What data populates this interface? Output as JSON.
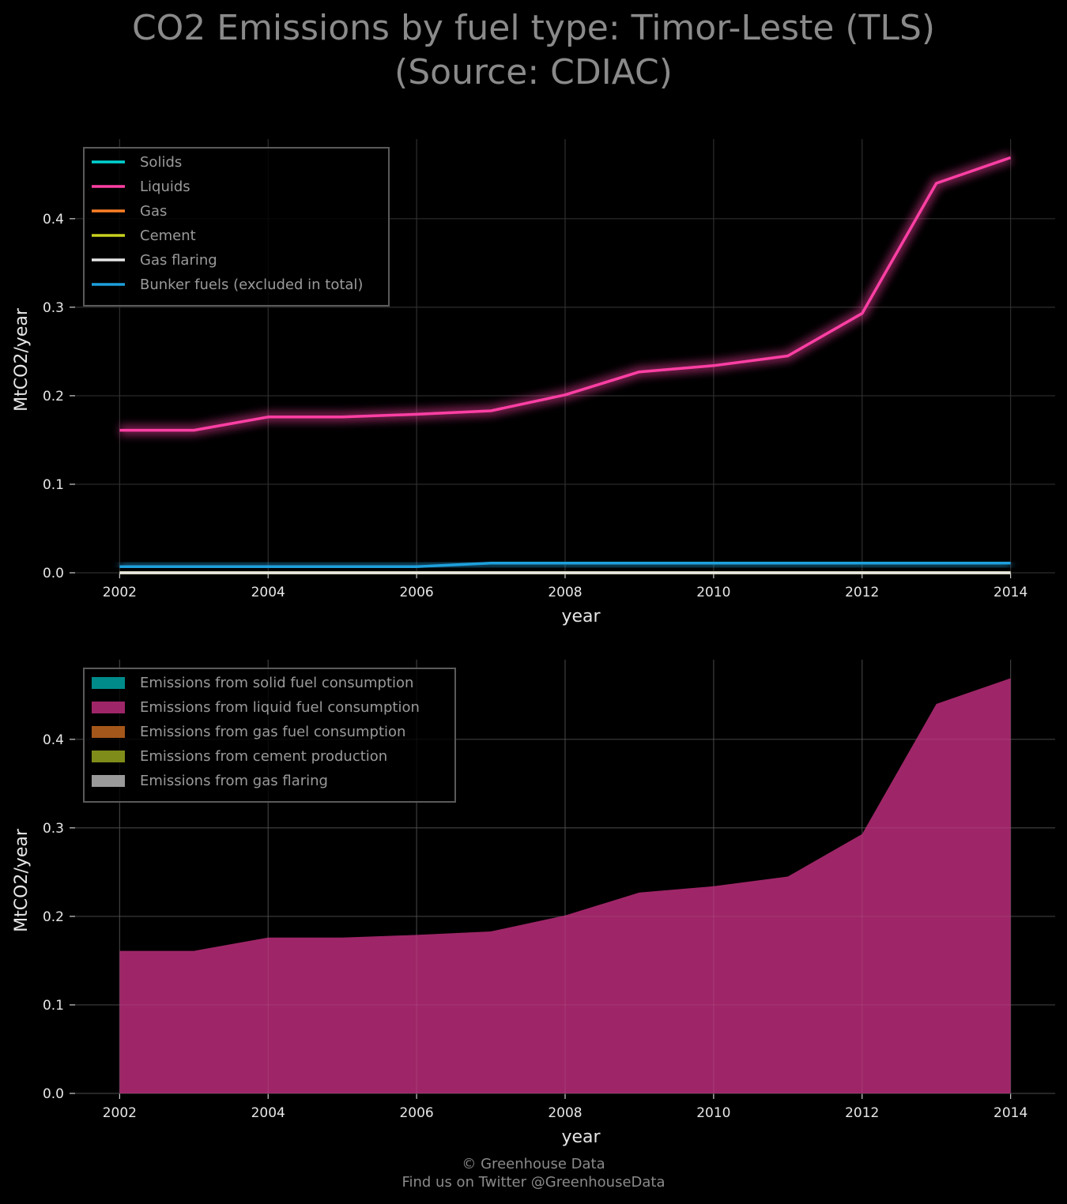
{
  "title": {
    "line1": "CO2 Emissions by fuel type: Timor-Leste (TLS)",
    "line2": "(Source: CDIAC)"
  },
  "footer": {
    "line1": "© Greenhouse Data",
    "line2": "Find us on Twitter @GreenhouseData"
  },
  "chart_data": [
    {
      "type": "line",
      "xlabel": "year",
      "ylabel": "MtCO2/year",
      "x": [
        2002,
        2003,
        2004,
        2005,
        2006,
        2007,
        2008,
        2009,
        2010,
        2011,
        2012,
        2013,
        2014
      ],
      "xticks": [
        "2002",
        "2004",
        "2006",
        "2008",
        "2010",
        "2012",
        "2014"
      ],
      "yticks": [
        "0.0",
        "0.1",
        "0.2",
        "0.3",
        "0.4"
      ],
      "xlim": [
        2001.4,
        2014.6
      ],
      "ylim": [
        0,
        0.49
      ],
      "grid": true,
      "legend_position": "top-left",
      "series": [
        {
          "name": "Solids",
          "color": "#00d2d2",
          "values": [
            0,
            0,
            0,
            0,
            0,
            0,
            0,
            0,
            0,
            0,
            0,
            0,
            0
          ]
        },
        {
          "name": "Liquids",
          "color": "#ff3fa4",
          "values": [
            0.161,
            0.161,
            0.176,
            0.176,
            0.179,
            0.183,
            0.201,
            0.227,
            0.234,
            0.245,
            0.293,
            0.44,
            0.469
          ]
        },
        {
          "name": "Gas",
          "color": "#ff7f27",
          "values": [
            0,
            0,
            0,
            0,
            0,
            0,
            0,
            0,
            0,
            0,
            0,
            0,
            0
          ]
        },
        {
          "name": "Cement",
          "color": "#c8d21e",
          "values": [
            0,
            0,
            0,
            0,
            0,
            0,
            0,
            0,
            0,
            0,
            0,
            0,
            0
          ]
        },
        {
          "name": "Gas flaring",
          "color": "#e6e6e6",
          "values": [
            0,
            0,
            0,
            0,
            0,
            0,
            0,
            0,
            0,
            0,
            0,
            0,
            0
          ]
        },
        {
          "name": "Bunker fuels (excluded in total)",
          "color": "#1ea0dc",
          "values": [
            0.007,
            0.007,
            0.007,
            0.007,
            0.007,
            0.011,
            0.011,
            0.011,
            0.011,
            0.011,
            0.011,
            0.011,
            0.011
          ]
        }
      ]
    },
    {
      "type": "area",
      "xlabel": "year",
      "ylabel": "MtCO2/year",
      "x": [
        2002,
        2003,
        2004,
        2005,
        2006,
        2007,
        2008,
        2009,
        2010,
        2011,
        2012,
        2013,
        2014
      ],
      "xticks": [
        "2002",
        "2004",
        "2006",
        "2008",
        "2010",
        "2012",
        "2014"
      ],
      "yticks": [
        "0.0",
        "0.1",
        "0.2",
        "0.3",
        "0.4"
      ],
      "xlim": [
        2001.4,
        2014.6
      ],
      "ylim": [
        0,
        0.49
      ],
      "grid": true,
      "stacked": true,
      "legend_position": "top-left",
      "series": [
        {
          "name": "Emissions from solid fuel consumption",
          "color": "#008b8b",
          "values": [
            0,
            0,
            0,
            0,
            0,
            0,
            0,
            0,
            0,
            0,
            0,
            0,
            0
          ]
        },
        {
          "name": "Emissions from liquid fuel consumption",
          "color": "#9e2668",
          "values": [
            0.161,
            0.161,
            0.176,
            0.176,
            0.179,
            0.183,
            0.201,
            0.227,
            0.234,
            0.245,
            0.293,
            0.44,
            0.469
          ]
        },
        {
          "name": "Emissions from gas fuel consumption",
          "color": "#a4571a",
          "values": [
            0,
            0,
            0,
            0,
            0,
            0,
            0,
            0,
            0,
            0,
            0,
            0,
            0
          ]
        },
        {
          "name": "Emissions from cement production",
          "color": "#7f8c1a",
          "values": [
            0,
            0,
            0,
            0,
            0,
            0,
            0,
            0,
            0,
            0,
            0,
            0,
            0
          ]
        },
        {
          "name": "Emissions from gas flaring",
          "color": "#9a9a9a",
          "values": [
            0,
            0,
            0,
            0,
            0,
            0,
            0,
            0,
            0,
            0,
            0,
            0,
            0
          ]
        }
      ]
    }
  ]
}
